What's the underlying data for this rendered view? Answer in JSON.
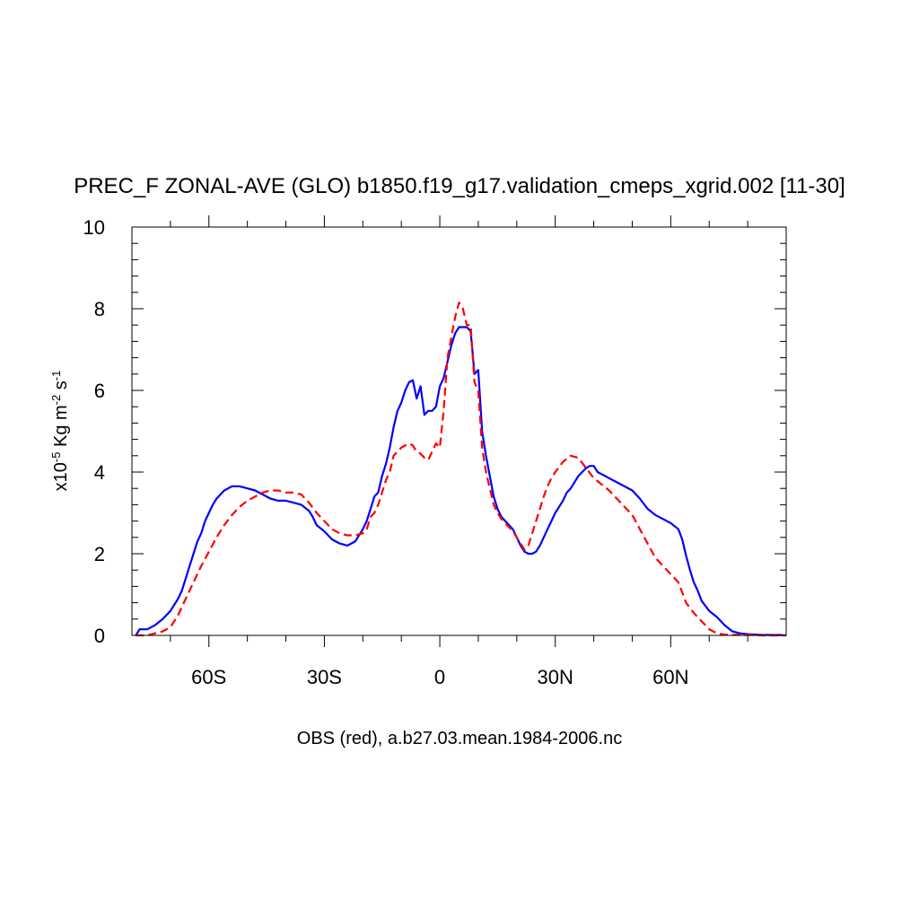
{
  "chart_data": {
    "type": "line",
    "title": "PREC_F ZONAL-AVE (GLO) b1850.f19_g17.validation_cmeps_xgrid.002 [11-30]",
    "xlabel": "OBS (red), a.b27.03.mean.1984-2006.nc",
    "ylabel": {
      "prefix": "x10",
      "exp": "-5",
      "unit": " Kg m",
      "unit_exp": "-2",
      "s": " s",
      "s_exp": "-1"
    },
    "xlim": [
      -80,
      90
    ],
    "ylim": [
      0,
      10
    ],
    "xticks": [
      {
        "value": -60,
        "label": "60S"
      },
      {
        "value": -30,
        "label": "30S"
      },
      {
        "value": 0,
        "label": "0"
      },
      {
        "value": 30,
        "label": "30N"
      },
      {
        "value": 60,
        "label": "60N"
      }
    ],
    "yticks": [
      {
        "value": 0,
        "label": "0"
      },
      {
        "value": 2,
        "label": "2"
      },
      {
        "value": 4,
        "label": "4"
      },
      {
        "value": 6,
        "label": "6"
      },
      {
        "value": 8,
        "label": "8"
      },
      {
        "value": 10,
        "label": "10"
      }
    ],
    "series": [
      {
        "name": "b1850.f19_g17.validation_cmeps_xgrid.002",
        "color": "#0000ff",
        "dash": "solid",
        "x": [
          -79,
          -78,
          -76,
          -74,
          -72,
          -70,
          -68,
          -67,
          -66,
          -65,
          -64,
          -63,
          -62,
          -61,
          -60,
          -59,
          -58,
          -57,
          -56,
          -55,
          -54,
          -52,
          -50,
          -48,
          -46,
          -44,
          -42,
          -40,
          -38,
          -36,
          -34,
          -33,
          -32,
          -30,
          -28,
          -26,
          -24,
          -22,
          -20,
          -19,
          -18,
          -17,
          -16,
          -15,
          -14,
          -13,
          -12,
          -11,
          -10,
          -9,
          -8,
          -7,
          -6,
          -5,
          -4,
          -3,
          -2,
          -1,
          0,
          1,
          2,
          3,
          4,
          5,
          6,
          7,
          8,
          9,
          10,
          11,
          12,
          13,
          14,
          15,
          16,
          17,
          18,
          19,
          20,
          21,
          22,
          23,
          24,
          25,
          26,
          27,
          28,
          29,
          30,
          31,
          32,
          33,
          34,
          35,
          36,
          37,
          38,
          39,
          40,
          41,
          42,
          43,
          44,
          46,
          48,
          50,
          52,
          54,
          56,
          58,
          60,
          62,
          63,
          64,
          65,
          66,
          67,
          68,
          70,
          72,
          74,
          76,
          78,
          80,
          82,
          84,
          86,
          88,
          90
        ],
        "y": [
          0.0,
          0.15,
          0.15,
          0.25,
          0.4,
          0.6,
          0.9,
          1.1,
          1.4,
          1.7,
          2.0,
          2.3,
          2.5,
          2.8,
          3.0,
          3.2,
          3.35,
          3.45,
          3.55,
          3.6,
          3.65,
          3.65,
          3.6,
          3.55,
          3.45,
          3.35,
          3.3,
          3.3,
          3.25,
          3.2,
          3.05,
          2.9,
          2.7,
          2.55,
          2.35,
          2.25,
          2.2,
          2.3,
          2.6,
          2.8,
          3.1,
          3.4,
          3.5,
          3.9,
          4.2,
          4.6,
          5.1,
          5.5,
          5.7,
          6.0,
          6.2,
          6.25,
          5.8,
          6.1,
          5.4,
          5.5,
          5.5,
          5.6,
          6.1,
          6.3,
          6.7,
          7.1,
          7.4,
          7.55,
          7.55,
          7.55,
          7.45,
          6.4,
          6.5,
          5.0,
          4.4,
          3.9,
          3.4,
          3.1,
          2.9,
          2.8,
          2.7,
          2.6,
          2.4,
          2.2,
          2.05,
          2.0,
          2.0,
          2.05,
          2.2,
          2.4,
          2.6,
          2.8,
          3.0,
          3.15,
          3.3,
          3.5,
          3.6,
          3.75,
          3.9,
          4.0,
          4.1,
          4.15,
          4.15,
          4.0,
          3.95,
          3.9,
          3.85,
          3.75,
          3.65,
          3.55,
          3.35,
          3.1,
          2.95,
          2.85,
          2.75,
          2.6,
          2.35,
          1.95,
          1.6,
          1.3,
          1.1,
          0.85,
          0.6,
          0.45,
          0.25,
          0.1,
          0.05,
          0.03,
          0.02,
          0.01,
          0.01,
          0.01,
          0.0
        ]
      },
      {
        "name": "OBS",
        "color": "#ff0000",
        "dash": "dashed",
        "x": [
          -79,
          -78,
          -76,
          -74,
          -72,
          -70,
          -68,
          -66,
          -64,
          -62,
          -60,
          -58,
          -56,
          -54,
          -52,
          -50,
          -48,
          -46,
          -44,
          -42,
          -40,
          -38,
          -36,
          -34,
          -32,
          -30,
          -28,
          -26,
          -24,
          -22,
          -20,
          -19,
          -18,
          -17,
          -16,
          -15,
          -14,
          -13,
          -12,
          -11,
          -10,
          -9,
          -8,
          -7,
          -6,
          -5,
          -4,
          -3,
          -2,
          -1,
          0,
          1,
          2,
          3,
          4,
          5,
          6,
          7,
          8,
          9,
          10,
          11,
          12,
          13,
          14,
          15,
          16,
          17,
          18,
          19,
          20,
          21,
          22,
          23,
          24,
          25,
          26,
          27,
          28,
          29,
          30,
          32,
          34,
          36,
          38,
          40,
          42,
          44,
          46,
          48,
          50,
          52,
          54,
          56,
          58,
          60,
          62,
          63,
          64,
          66,
          68,
          70,
          72,
          74,
          76,
          78,
          80,
          82,
          84,
          86,
          88,
          90
        ],
        "y": [
          0.0,
          0.0,
          0.0,
          0.05,
          0.1,
          0.2,
          0.5,
          0.9,
          1.3,
          1.7,
          2.05,
          2.4,
          2.7,
          2.95,
          3.15,
          3.3,
          3.4,
          3.5,
          3.55,
          3.55,
          3.5,
          3.5,
          3.45,
          3.25,
          3.0,
          2.8,
          2.6,
          2.5,
          2.45,
          2.45,
          2.5,
          2.6,
          2.9,
          3.0,
          3.2,
          3.5,
          3.8,
          4.0,
          4.4,
          4.5,
          4.6,
          4.65,
          4.7,
          4.65,
          4.5,
          4.45,
          4.35,
          4.3,
          4.5,
          4.7,
          4.6,
          5.5,
          6.8,
          7.3,
          7.8,
          8.15,
          8.0,
          7.6,
          7.6,
          6.2,
          6.0,
          4.6,
          4.0,
          3.6,
          3.2,
          3.0,
          2.85,
          2.75,
          2.65,
          2.55,
          2.4,
          2.25,
          2.1,
          2.2,
          2.5,
          2.8,
          3.1,
          3.4,
          3.65,
          3.85,
          4.0,
          4.25,
          4.4,
          4.35,
          4.1,
          3.85,
          3.7,
          3.55,
          3.35,
          3.15,
          2.95,
          2.6,
          2.25,
          1.9,
          1.7,
          1.5,
          1.3,
          1.05,
          0.8,
          0.55,
          0.35,
          0.15,
          0.05,
          0.02,
          0.01,
          0.01,
          0.01,
          0.01,
          0.0,
          0.0,
          0.0,
          0.0
        ]
      }
    ]
  }
}
